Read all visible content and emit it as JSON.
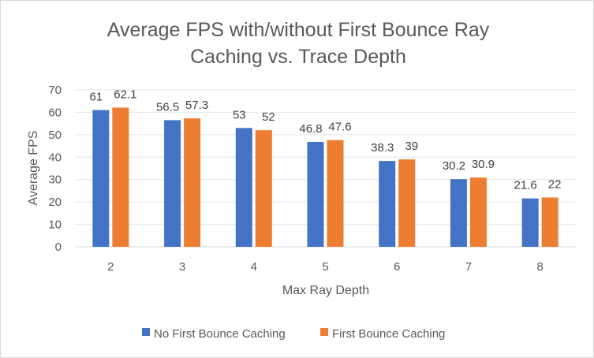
{
  "chart_data": {
    "type": "bar",
    "title_lines": [
      "Average FPS  with/without First Bounce Ray",
      "Caching vs. Trace Depth"
    ],
    "xlabel": "Max Ray Depth",
    "ylabel": "Average FPS",
    "categories": [
      "2",
      "3",
      "4",
      "5",
      "6",
      "7",
      "8"
    ],
    "series": [
      {
        "name": "No First Bounce Caching",
        "color": "#4472c4",
        "values": [
          61,
          56.5,
          53,
          46.8,
          38.3,
          30.2,
          21.6
        ]
      },
      {
        "name": "First Bounce Caching",
        "color": "#ed7d31",
        "values": [
          62.1,
          57.3,
          52,
          47.6,
          39,
          30.9,
          22
        ]
      }
    ],
    "ylim": [
      0,
      70
    ],
    "yticks": [
      0,
      10,
      20,
      30,
      40,
      50,
      60,
      70
    ],
    "grid": true,
    "legend_position": "bottom"
  }
}
